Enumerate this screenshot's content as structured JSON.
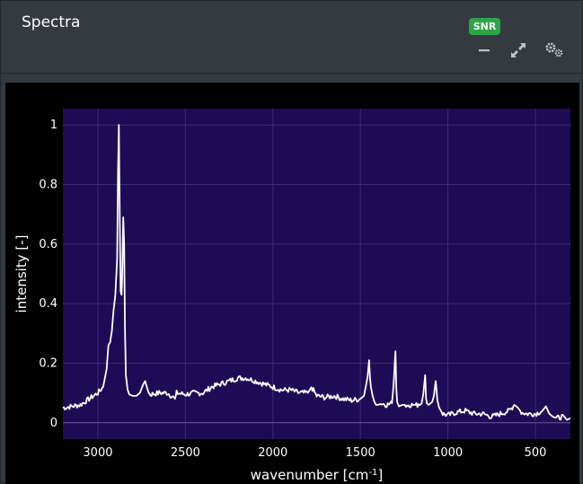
{
  "panel": {
    "title": "Spectra",
    "badge": "SNR"
  },
  "toolbar": {
    "minimize_icon": "minus-icon",
    "expand_icon": "expand-icon",
    "settings_icon": "gears-icon"
  },
  "colors": {
    "plot_background": "#1e0b55",
    "line": "#ffffff",
    "badge": "#28a745"
  },
  "chart_data": {
    "type": "line",
    "xlabel": "wavenumber [cm",
    "xlabel_sup": "-1",
    "xlabel_end": "]",
    "ylabel": "intensity [-]",
    "xlim": [
      3200,
      300
    ],
    "ylim": [
      -0.055,
      1.055
    ],
    "x_reversed": true,
    "x_ticks": [
      3000,
      2500,
      2000,
      1500,
      1000,
      500
    ],
    "y_ticks": [
      0,
      0.2,
      0.4,
      0.6,
      0.8,
      1
    ],
    "y_tick_labels": [
      "0",
      "0.2",
      "0.4",
      "0.6",
      "0.8",
      "1"
    ],
    "grid": true,
    "series": [
      {
        "x": [
          3200,
          3150,
          3100,
          3050,
          3000,
          2970,
          2950,
          2940,
          2930,
          2920,
          2910,
          2900,
          2890,
          2885,
          2880,
          2875,
          2870,
          2865,
          2860,
          2855,
          2850,
          2845,
          2840,
          2830,
          2820,
          2800,
          2780,
          2760,
          2740,
          2730,
          2720,
          2710,
          2700,
          2650,
          2600,
          2560,
          2550,
          2500,
          2450,
          2400,
          2350,
          2300,
          2250,
          2200,
          2150,
          2100,
          2050,
          2000,
          1950,
          1900,
          1850,
          1800,
          1780,
          1750,
          1700,
          1650,
          1600,
          1550,
          1500,
          1480,
          1470,
          1460,
          1450,
          1445,
          1440,
          1430,
          1420,
          1410,
          1400,
          1380,
          1350,
          1320,
          1310,
          1300,
          1295,
          1290,
          1280,
          1260,
          1240,
          1200,
          1180,
          1150,
          1140,
          1130,
          1125,
          1120,
          1110,
          1090,
          1080,
          1070,
          1065,
          1060,
          1050,
          1040,
          1030,
          1000,
          950,
          900,
          850,
          800,
          750,
          700,
          650,
          620,
          600,
          580,
          550,
          500,
          460,
          440,
          420,
          400,
          380,
          350,
          320,
          300
        ],
        "y": [
          0.05,
          0.055,
          0.06,
          0.08,
          0.1,
          0.12,
          0.18,
          0.26,
          0.27,
          0.31,
          0.38,
          0.43,
          0.55,
          0.85,
          1.0,
          0.7,
          0.44,
          0.43,
          0.52,
          0.69,
          0.6,
          0.3,
          0.16,
          0.11,
          0.095,
          0.09,
          0.09,
          0.1,
          0.13,
          0.14,
          0.12,
          0.1,
          0.095,
          0.1,
          0.1,
          0.08,
          0.1,
          0.095,
          0.1,
          0.1,
          0.12,
          0.13,
          0.14,
          0.15,
          0.15,
          0.14,
          0.13,
          0.12,
          0.11,
          0.11,
          0.1,
          0.1,
          0.12,
          0.09,
          0.085,
          0.09,
          0.08,
          0.075,
          0.08,
          0.09,
          0.12,
          0.15,
          0.21,
          0.15,
          0.12,
          0.09,
          0.07,
          0.06,
          0.06,
          0.065,
          0.06,
          0.065,
          0.13,
          0.24,
          0.12,
          0.07,
          0.055,
          0.06,
          0.06,
          0.06,
          0.06,
          0.065,
          0.1,
          0.16,
          0.08,
          0.065,
          0.06,
          0.07,
          0.09,
          0.14,
          0.11,
          0.075,
          0.05,
          0.04,
          0.03,
          0.025,
          0.035,
          0.04,
          0.03,
          0.03,
          0.02,
          0.03,
          0.04,
          0.06,
          0.05,
          0.035,
          0.03,
          0.03,
          0.04,
          0.055,
          0.03,
          0.02,
          0.015,
          0.02,
          0.01,
          0.015
        ]
      }
    ]
  }
}
